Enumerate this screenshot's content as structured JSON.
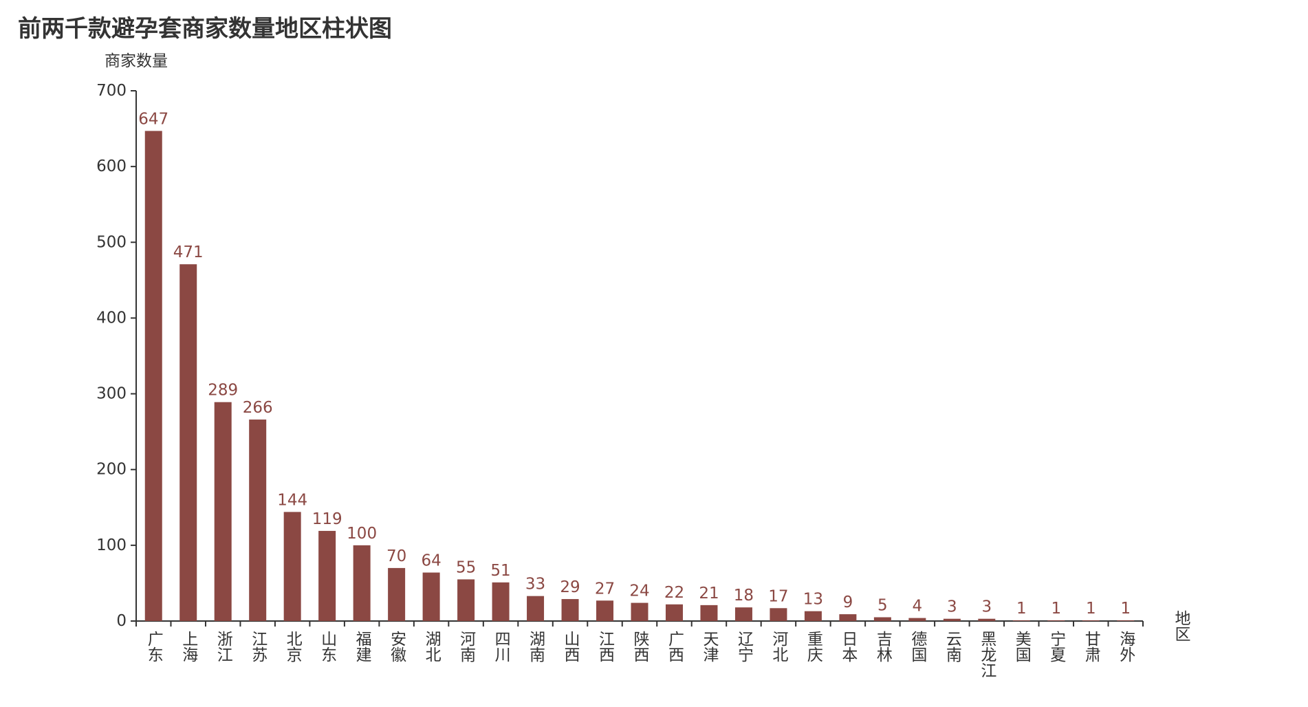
{
  "chart_data": {
    "type": "bar",
    "title": "前两千款避孕套商家数量地区柱状图",
    "xlabel": "地区",
    "ylabel": "商家数量",
    "ylim": [
      0,
      700
    ],
    "y_ticks": [
      0,
      100,
      200,
      300,
      400,
      500,
      600,
      700
    ],
    "grid": false,
    "legend": "none",
    "bar_color": "#8B4843",
    "label_color": "#8B4843",
    "axis_color": "#333333",
    "categories": [
      "广东",
      "上海",
      "浙江",
      "江苏",
      "北京",
      "山东",
      "福建",
      "安徽",
      "湖北",
      "河南",
      "四川",
      "湖南",
      "山西",
      "江西",
      "陕西",
      "广西",
      "天津",
      "辽宁",
      "河北",
      "重庆",
      "日本",
      "吉林",
      "德国",
      "云南",
      "黑龙江",
      "美国",
      "宁夏",
      "甘肃",
      "海外"
    ],
    "values": [
      647,
      471,
      289,
      266,
      144,
      119,
      100,
      70,
      64,
      55,
      51,
      33,
      29,
      27,
      24,
      22,
      21,
      18,
      17,
      13,
      9,
      5,
      4,
      3,
      3,
      1,
      1,
      1,
      1
    ]
  }
}
